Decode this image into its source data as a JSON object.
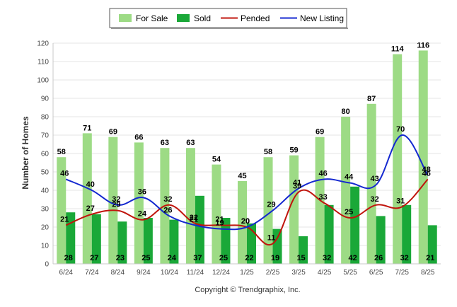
{
  "chart_data": {
    "type": "bar",
    "categories": [
      "6/24",
      "7/24",
      "8/24",
      "9/24",
      "10/24",
      "11/24",
      "12/24",
      "1/25",
      "2/25",
      "3/25",
      "4/25",
      "5/25",
      "6/25",
      "7/25",
      "8/25"
    ],
    "series": [
      {
        "name": "For Sale",
        "kind": "bar",
        "color": "#9ddb85",
        "values": [
          58,
          71,
          69,
          66,
          63,
          63,
          54,
          45,
          58,
          59,
          69,
          80,
          87,
          114,
          116
        ]
      },
      {
        "name": "Sold",
        "kind": "bar",
        "color": "#1aa838",
        "values": [
          28,
          27,
          23,
          25,
          24,
          37,
          25,
          22,
          19,
          15,
          32,
          42,
          26,
          32,
          21
        ]
      },
      {
        "name": "Pended",
        "kind": "line",
        "color": "#c0140c",
        "values": [
          21,
          27,
          29,
          24,
          32,
          22,
          21,
          20,
          11,
          39,
          33,
          25,
          32,
          31,
          46
        ]
      },
      {
        "name": "New Listing",
        "kind": "line",
        "color": "#1428d0",
        "values": [
          46,
          40,
          32,
          36,
          26,
          21,
          19,
          20,
          29,
          41,
          46,
          44,
          43,
          70,
          48
        ]
      }
    ],
    "title": "",
    "xlabel": "",
    "ylabel": "Number of Homes",
    "ylim": [
      0,
      120
    ],
    "yticks": [
      0,
      10,
      20,
      30,
      40,
      50,
      60,
      70,
      80,
      90,
      100,
      110,
      120
    ],
    "grid": true,
    "legend_position": "top-center",
    "footer": "Copyright © Trendgraphix, Inc."
  }
}
